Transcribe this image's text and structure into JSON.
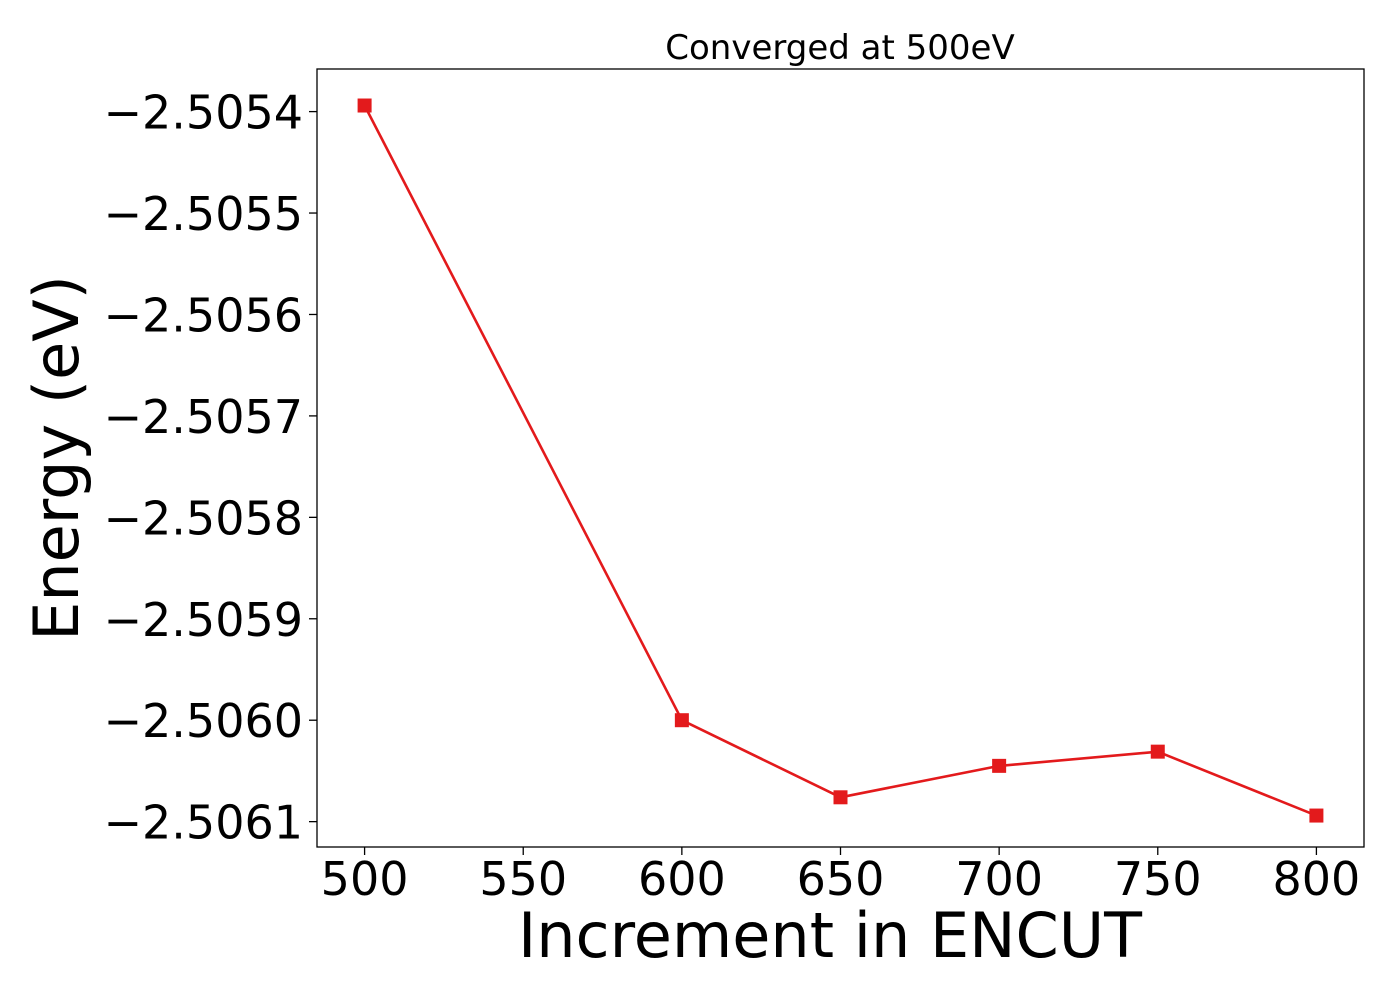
{
  "chart_data": {
    "type": "line",
    "title": "Converged at 500eV",
    "xlabel": "Increment in ENCUT",
    "ylabel": "Energy (eV)",
    "x": [
      500,
      600,
      650,
      700,
      750,
      800
    ],
    "series": [
      {
        "values": [
          -2.505394,
          -2.506,
          -2.506076,
          -2.506045,
          -2.506031,
          -2.506094
        ],
        "color": "#e31a1c",
        "marker": "square"
      }
    ],
    "xticks": [
      500,
      550,
      600,
      650,
      700,
      750,
      800
    ],
    "xtick_labels": [
      "500",
      "550",
      "600",
      "650",
      "700",
      "750",
      "800"
    ],
    "yticks": [
      -2.5054,
      -2.5055,
      -2.5056,
      -2.5057,
      -2.5058,
      -2.5059,
      -2.506,
      -2.5061
    ],
    "ytick_labels": [
      "−2.5054",
      "−2.5055",
      "−2.5056",
      "−2.5057",
      "−2.5058",
      "−2.5059",
      "−2.5060",
      "−2.5061"
    ],
    "xlim": [
      485,
      815
    ],
    "ylim": [
      -2.506125,
      -2.505358
    ],
    "grid": false,
    "legend": false
  }
}
